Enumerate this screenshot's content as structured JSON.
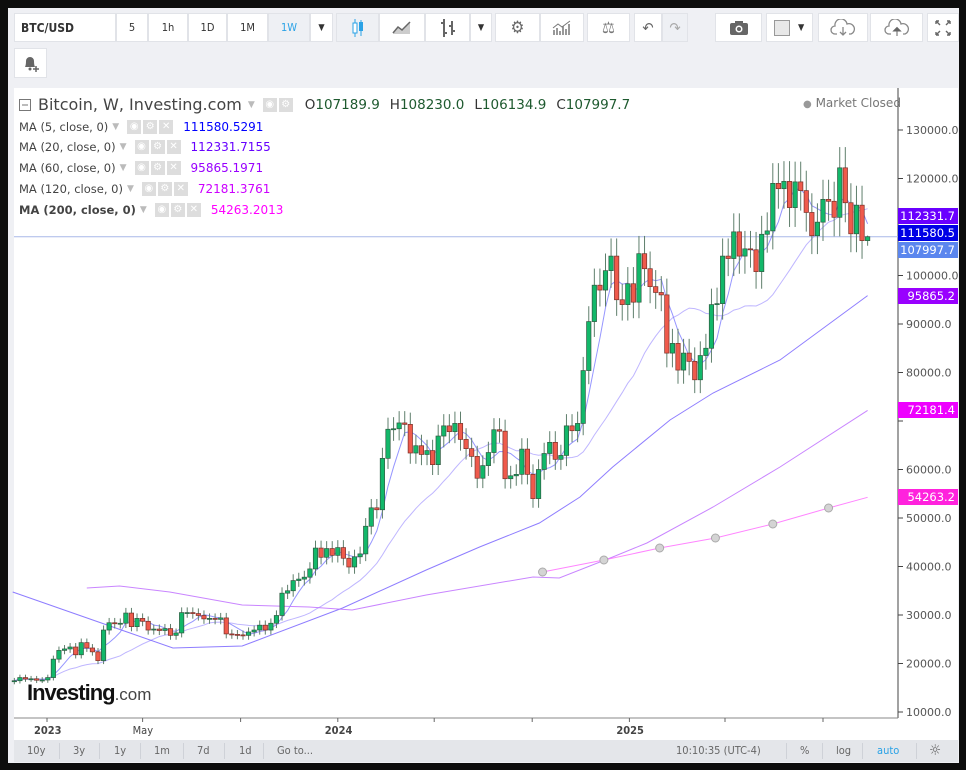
{
  "toolbar": {
    "symbol": "BTC/USD",
    "intervals": [
      "5",
      "1h",
      "1D",
      "1M",
      "1W"
    ],
    "active_interval": "1W",
    "icons": [
      "chevron-down-icon",
      "candlestick-icon",
      "area-chart-icon",
      "bar-chart-icon",
      "chevron-down-icon",
      "gear-icon",
      "indicators-icon",
      "scale-icon",
      "undo-icon",
      "redo-icon",
      "camera-icon",
      "color-swatch-icon",
      "chevron-down-icon",
      "cloud-download-icon",
      "cloud-upload-icon",
      "fullscreen-icon",
      "add-alert-icon"
    ]
  },
  "legend": {
    "title": "Bitcoin, W, Investing.com",
    "open_label": "O",
    "open": "107189.9",
    "high_label": "H",
    "high": "108230.0",
    "low_label": "L",
    "low": "106134.9",
    "close_label": "C",
    "close": "107997.7",
    "market_status": "Market Closed",
    "indicators": [
      {
        "label": "MA (5, close, 0)",
        "value": "111580.5291",
        "color": "#0000ff"
      },
      {
        "label": "MA (20, close, 0)",
        "value": "112331.7155",
        "color": "#6600ff"
      },
      {
        "label": "MA (60, close, 0)",
        "value": "95865.1971",
        "color": "#9900ff"
      },
      {
        "label": "MA (120, close, 0)",
        "value": "72181.3761",
        "color": "#cc00ff"
      },
      {
        "label": "MA (200, close, 0)",
        "value": "54263.2013",
        "color": "#ff00ff"
      }
    ]
  },
  "price_tags": [
    {
      "text": "112331.7",
      "value": 112331.7,
      "color": "#6a00ff"
    },
    {
      "text": "111580.5",
      "value": 111580.5,
      "color": "#0000e6"
    },
    {
      "text": "107997.7",
      "value": 107997.7,
      "color": "#5b86ee"
    },
    {
      "text": "95865.2",
      "value": 95865.2,
      "color": "#9900ff"
    },
    {
      "text": "72181.4",
      "value": 72181.4,
      "color": "#ee00ff"
    },
    {
      "text": "54263.2",
      "value": 54263.2,
      "color": "#ff22dd"
    }
  ],
  "bottom_bar": {
    "ranges": [
      "10y",
      "3y",
      "1y",
      "1m",
      "7d",
      "1d"
    ],
    "goto": "Go to...",
    "clock": "10:10:35 (UTC-4)",
    "percent": "%",
    "log": "log",
    "auto": "auto"
  },
  "logo": {
    "brand": "Investing",
    "suffix": ".com"
  },
  "chart_data": {
    "type": "candlestick",
    "interval": "weekly",
    "first_week": "2022-11-21",
    "closes": [
      16450,
      17100,
      16800,
      16850,
      16550,
      16600,
      17100,
      20900,
      22700,
      23000,
      23400,
      21800,
      24300,
      23200,
      22400,
      20600,
      26900,
      28400,
      28200,
      28300,
      30400,
      27600,
      29300,
      28700,
      26900,
      27100,
      26800,
      27200,
      25800,
      26300,
      30500,
      30500,
      30300,
      29900,
      29200,
      29300,
      29100,
      29400,
      26100,
      26000,
      25900,
      25800,
      26500,
      26900,
      27900,
      26900,
      28300,
      29900,
      34500,
      35000,
      37100,
      37400,
      37800,
      39500,
      43800,
      41900,
      43700,
      42300,
      43900,
      41700,
      39900,
      42000,
      42600,
      48300,
      52100,
      51700,
      62300,
      68300,
      68400,
      69600,
      69300,
      63400,
      64900,
      63100,
      63900,
      61000,
      66900,
      69000,
      67800,
      69500,
      66200,
      64300,
      62700,
      58200,
      60800,
      63500,
      68200,
      67900,
      58100,
      58700,
      59000,
      64200,
      59000,
      54000,
      60000,
      63300,
      65600,
      62100,
      62900,
      69000,
      68000,
      69500,
      80400,
      90500,
      98000,
      97000,
      101000,
      104000,
      95000,
      94000,
      98300,
      94500,
      104500,
      101400,
      97700,
      96500,
      96000,
      84000,
      86000,
      80500,
      84000,
      82300,
      78500,
      83500,
      85000,
      94000,
      94200,
      104000,
      103500,
      109000,
      104000,
      105500,
      105300,
      100800,
      108500,
      109200,
      119000,
      117900,
      119400,
      114000,
      119300,
      117500,
      113000,
      108200,
      111000,
      115700,
      115300,
      112000,
      122200,
      115000,
      108600,
      114500,
      107190,
      107997.7
    ],
    "last_candle": {
      "open": 107189.9,
      "high": 108230.0,
      "low": 106134.9,
      "close": 107997.7
    },
    "moving_averages": [
      {
        "name": "MA (60, close, 0)",
        "color": "#7a66ff",
        "points": [
          [
            "2022-11-19",
            34743
          ],
          [
            "2023-06-08",
            23196
          ],
          [
            "2023-09-03",
            23608
          ],
          [
            "2024-01-07",
            31443
          ],
          [
            "2024-04-21",
            39279
          ],
          [
            "2024-06-27",
            44021
          ],
          [
            "2024-09-10",
            48969
          ],
          [
            "2024-10-31",
            54330
          ],
          [
            "2024-12-11",
            60516
          ],
          [
            "2025-02-21",
            70207
          ],
          [
            "2025-04-16",
            75774
          ],
          [
            "2025-07-09",
            82579
          ],
          [
            "2025-10-27",
            95865
          ]
        ]
      },
      {
        "name": "MA (120, close, 0)",
        "color": "#c070ff",
        "points": [
          [
            "2023-02-20",
            35567
          ],
          [
            "2023-04-02",
            35980
          ],
          [
            "2023-06-04",
            34743
          ],
          [
            "2023-09-03",
            32062
          ],
          [
            "2023-11-26",
            31650
          ],
          [
            "2024-01-19",
            31031
          ],
          [
            "2024-04-21",
            34124
          ],
          [
            "2024-09-02",
            37836
          ],
          [
            "2024-10-05",
            37630
          ],
          [
            "2024-12-11",
            41959
          ],
          [
            "2025-01-23",
            44846
          ],
          [
            "2025-04-16",
            52269
          ],
          [
            "2025-07-09",
            60516
          ],
          [
            "2025-10-27",
            72181
          ]
        ]
      },
      {
        "name": "MA (200, close, 0)",
        "color": "#ff70ff",
        "markers": true,
        "points": [
          [
            "2024-09-14",
            38867
          ],
          [
            "2024-11-30",
            41340
          ],
          [
            "2025-02-08",
            43814
          ],
          [
            "2025-04-19",
            45876
          ],
          [
            "2025-06-30",
            48763
          ],
          [
            "2025-09-08",
            52062
          ],
          [
            "2025-10-27",
            54263
          ]
        ]
      }
    ],
    "computed_ma_periods": [
      5,
      20
    ],
    "computed_ma_colors": [
      "#3f3fff",
      "#8a7aff"
    ],
    "y_axis": {
      "min": 10000,
      "max": 130000,
      "step": 10000,
      "tick_format": "0.0",
      "scale": "linear"
    },
    "x_ticks": [
      {
        "date": "2023-01-01",
        "label": "2023",
        "major": true
      },
      {
        "date": "2023-05-01",
        "label": "May",
        "major": false
      },
      {
        "date": "2023-09-01",
        "label": "",
        "major": false
      },
      {
        "date": "2024-01-01",
        "label": "2024",
        "major": true
      },
      {
        "date": "2024-05-01",
        "label": "",
        "major": false
      },
      {
        "date": "2024-09-01",
        "label": "",
        "major": false
      },
      {
        "date": "2025-01-01",
        "label": "2025",
        "major": true
      },
      {
        "date": "2025-05-01",
        "label": "",
        "major": false
      },
      {
        "date": "2025-09-01",
        "label": "",
        "major": false
      }
    ],
    "up_color": "#12b86a",
    "down_color": "#ef5a4c",
    "grid": false
  }
}
